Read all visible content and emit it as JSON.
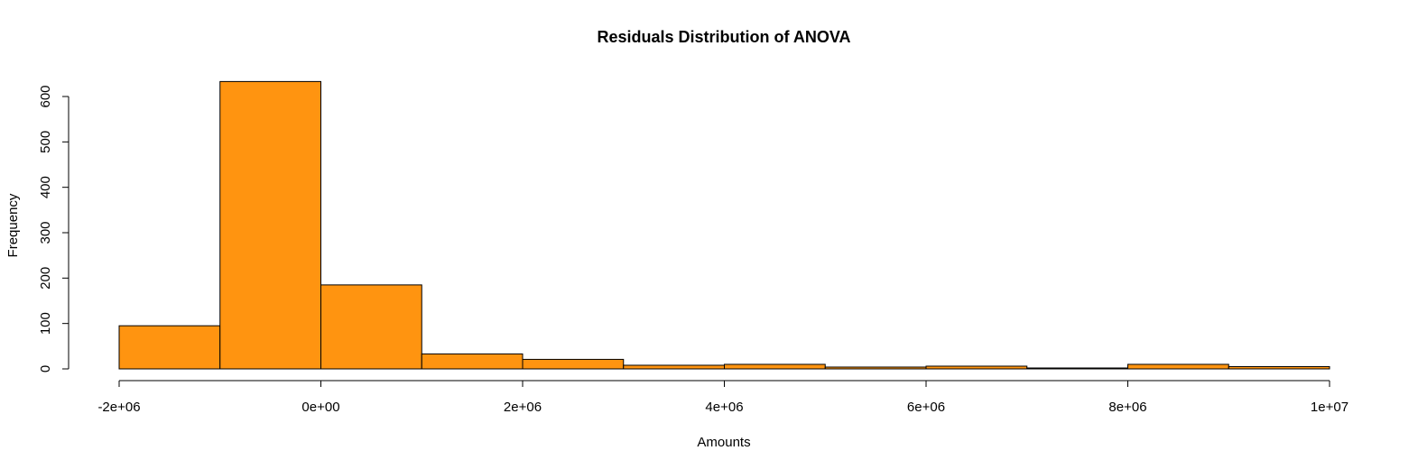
{
  "chart_data": {
    "type": "bar",
    "subtype": "histogram",
    "title": "Residuals Distribution of ANOVA",
    "xlabel": "Amounts",
    "ylabel": "Frequency",
    "bar_color": "#FF9410",
    "edge_color": "#000000",
    "bins": [
      {
        "start": -2000000,
        "end": -1000000,
        "count": 95
      },
      {
        "start": -1000000,
        "end": 0,
        "count": 633
      },
      {
        "start": 0,
        "end": 1000000,
        "count": 185
      },
      {
        "start": 1000000,
        "end": 2000000,
        "count": 33
      },
      {
        "start": 2000000,
        "end": 3000000,
        "count": 21
      },
      {
        "start": 3000000,
        "end": 4000000,
        "count": 8
      },
      {
        "start": 4000000,
        "end": 5000000,
        "count": 10
      },
      {
        "start": 5000000,
        "end": 6000000,
        "count": 4
      },
      {
        "start": 6000000,
        "end": 7000000,
        "count": 6
      },
      {
        "start": 7000000,
        "end": 8000000,
        "count": 2
      },
      {
        "start": 8000000,
        "end": 9000000,
        "count": 10
      },
      {
        "start": 9000000,
        "end": 10000000,
        "count": 5
      }
    ],
    "xlim": [
      -2000000,
      10000000
    ],
    "ylim": [
      0,
      600
    ],
    "x_ticks": [
      {
        "value": -2000000,
        "label": "-2e+06"
      },
      {
        "value": 0,
        "label": "0e+00"
      },
      {
        "value": 2000000,
        "label": "2e+06"
      },
      {
        "value": 4000000,
        "label": "4e+06"
      },
      {
        "value": 6000000,
        "label": "6e+06"
      },
      {
        "value": 8000000,
        "label": "8e+06"
      },
      {
        "value": 10000000,
        "label": "1e+07"
      }
    ],
    "y_ticks": [
      {
        "value": 0,
        "label": "0"
      },
      {
        "value": 100,
        "label": "100"
      },
      {
        "value": 200,
        "label": "200"
      },
      {
        "value": 300,
        "label": "300"
      },
      {
        "value": 400,
        "label": "400"
      },
      {
        "value": 500,
        "label": "500"
      },
      {
        "value": 600,
        "label": "600"
      }
    ],
    "grid": false
  }
}
